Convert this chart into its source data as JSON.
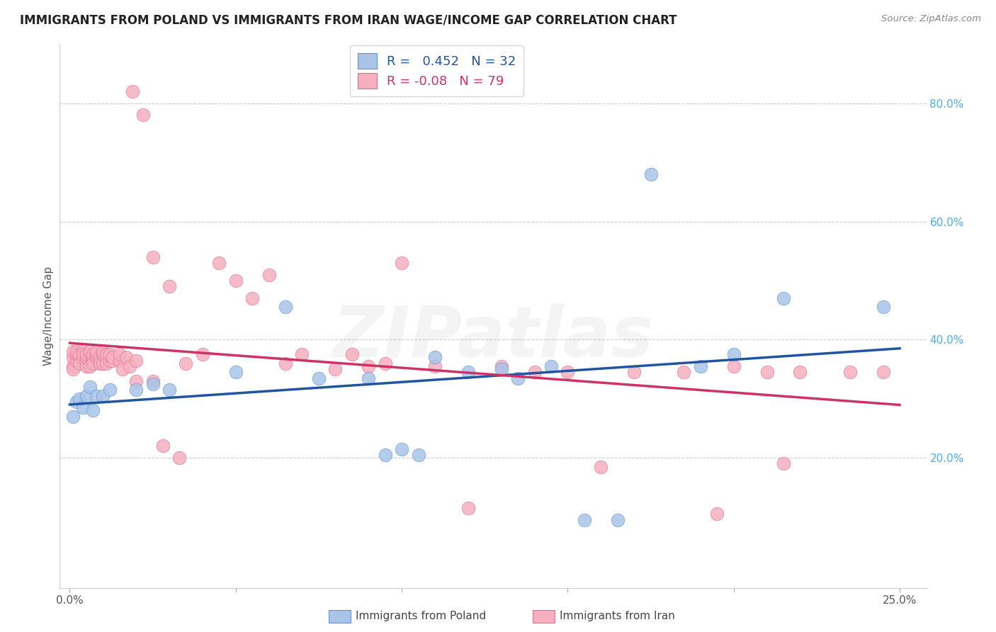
{
  "title": "IMMIGRANTS FROM POLAND VS IMMIGRANTS FROM IRAN WAGE/INCOME GAP CORRELATION CHART",
  "source": "Source: ZipAtlas.com",
  "ylabel": "Wage/Income Gap",
  "xlim": [
    0.0,
    0.25
  ],
  "ylim": [
    0.0,
    0.88
  ],
  "poland_color": "#aac4e8",
  "poland_edge": "#5b96d4",
  "iran_color": "#f5afc0",
  "iran_edge": "#e07090",
  "line_poland_color": "#2255a0",
  "line_iran_color": "#cc3366",
  "R_poland": 0.452,
  "N_poland": 32,
  "R_iran": -0.08,
  "N_iran": 79,
  "ytick_color": "#4dabf7",
  "grid_color": "#cccccc",
  "background_color": "#ffffff",
  "watermark_text": "ZIPatlas",
  "watermark_alpha": 0.13,
  "poland_x": [
    0.001,
    0.002,
    0.003,
    0.004,
    0.005,
    0.006,
    0.007,
    0.008,
    0.01,
    0.012,
    0.02,
    0.025,
    0.03,
    0.05,
    0.065,
    0.075,
    0.09,
    0.095,
    0.1,
    0.105,
    0.11,
    0.12,
    0.13,
    0.135,
    0.145,
    0.155,
    0.165,
    0.175,
    0.19,
    0.2,
    0.215,
    0.245
  ],
  "poland_y": [
    0.27,
    0.295,
    0.3,
    0.285,
    0.305,
    0.32,
    0.28,
    0.305,
    0.305,
    0.315,
    0.315,
    0.325,
    0.315,
    0.345,
    0.455,
    0.335,
    0.335,
    0.205,
    0.215,
    0.205,
    0.37,
    0.345,
    0.35,
    0.335,
    0.355,
    0.095,
    0.095,
    0.68,
    0.355,
    0.375,
    0.47,
    0.455
  ],
  "iran_x": [
    0.001,
    0.001,
    0.001,
    0.001,
    0.002,
    0.002,
    0.002,
    0.003,
    0.003,
    0.003,
    0.004,
    0.004,
    0.004,
    0.005,
    0.005,
    0.005,
    0.005,
    0.006,
    0.006,
    0.006,
    0.007,
    0.007,
    0.007,
    0.008,
    0.008,
    0.008,
    0.009,
    0.009,
    0.01,
    0.01,
    0.01,
    0.011,
    0.011,
    0.012,
    0.012,
    0.013,
    0.013,
    0.015,
    0.015,
    0.016,
    0.017,
    0.018,
    0.019,
    0.02,
    0.02,
    0.022,
    0.025,
    0.025,
    0.028,
    0.03,
    0.033,
    0.035,
    0.04,
    0.045,
    0.05,
    0.055,
    0.06,
    0.065,
    0.07,
    0.08,
    0.085,
    0.09,
    0.095,
    0.1,
    0.11,
    0.12,
    0.13,
    0.14,
    0.15,
    0.16,
    0.17,
    0.185,
    0.195,
    0.2,
    0.21,
    0.22,
    0.215,
    0.235,
    0.245
  ],
  "iran_y": [
    0.355,
    0.37,
    0.38,
    0.35,
    0.365,
    0.375,
    0.38,
    0.37,
    0.375,
    0.36,
    0.38,
    0.37,
    0.375,
    0.355,
    0.37,
    0.37,
    0.375,
    0.355,
    0.375,
    0.38,
    0.37,
    0.375,
    0.36,
    0.37,
    0.375,
    0.38,
    0.37,
    0.36,
    0.36,
    0.375,
    0.38,
    0.375,
    0.36,
    0.365,
    0.375,
    0.365,
    0.37,
    0.365,
    0.375,
    0.35,
    0.37,
    0.355,
    0.82,
    0.365,
    0.33,
    0.78,
    0.54,
    0.33,
    0.22,
    0.49,
    0.2,
    0.36,
    0.375,
    0.53,
    0.5,
    0.47,
    0.51,
    0.36,
    0.375,
    0.35,
    0.375,
    0.355,
    0.36,
    0.53,
    0.355,
    0.115,
    0.355,
    0.345,
    0.345,
    0.185,
    0.345,
    0.345,
    0.105,
    0.355,
    0.345,
    0.345,
    0.19,
    0.345,
    0.345
  ]
}
